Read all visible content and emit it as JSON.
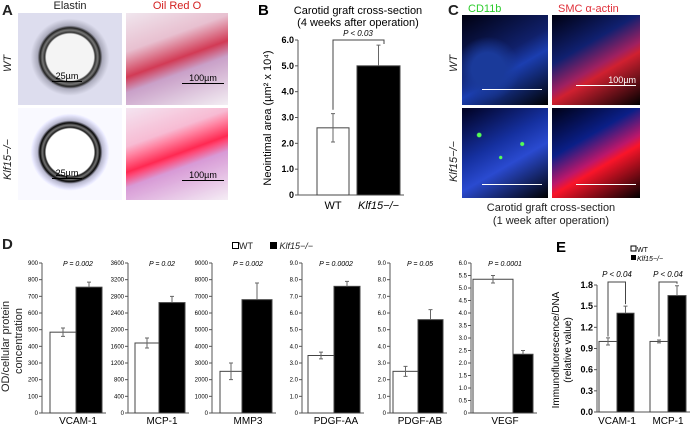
{
  "panel_a": {
    "letter": "A",
    "col1": "Elastin",
    "col2": "Oil Red O",
    "row1": "WT",
    "row2": "Klf15−/−",
    "scale_elastin": "25µm",
    "scale_oil": "100µm"
  },
  "panel_c": {
    "letter": "C",
    "col1": "CD11b",
    "col2": "SMC α-actin",
    "row1": "WT",
    "row2": "Klf15−/−",
    "scale": "100µm",
    "caption1": "Carotid graft cross-section",
    "caption2": "(1 week after operation)",
    "colors": {
      "cd11b": "#2ecc2e",
      "smc": "#e0303a"
    }
  },
  "panel_d": {
    "letter": "D",
    "legend_wt": "WT",
    "legend_ko": "Klf15−/−",
    "ylabel1": "OD/cellular protein",
    "ylabel2": "concentration"
  },
  "chart_data": [
    {
      "id": "B",
      "type": "bar",
      "letter": "B",
      "title": "Carotid graft cross-section",
      "subtitle": "(4 weeks after operation)",
      "ylabel": "Neointimal area (µm² x 10⁴)",
      "categories": [
        "WT",
        "Klf15−/−"
      ],
      "values": [
        2.6,
        5.0
      ],
      "errors": [
        0.55,
        0.8
      ],
      "ylim": [
        0,
        6
      ],
      "ticks": [
        "0",
        "1.0",
        "2.0",
        "3.0",
        "4.0",
        "5.0",
        "6.0"
      ],
      "pvalue": "P < 0.03"
    },
    {
      "id": "D1",
      "type": "bar",
      "category": "VCAM-1",
      "series": [
        {
          "name": "WT",
          "value": 485,
          "error": 25
        },
        {
          "name": "Klf15−/−",
          "value": 755,
          "error": 30
        }
      ],
      "ylim": [
        0,
        900
      ],
      "ticks": [
        "0",
        "100",
        "200",
        "300",
        "400",
        "500",
        "600",
        "700",
        "800",
        "900"
      ],
      "pvalue": "P = 0.002"
    },
    {
      "id": "D2",
      "type": "bar",
      "category": "MCP-1",
      "series": [
        {
          "name": "WT",
          "value": 1680,
          "error": 120
        },
        {
          "name": "Klf15−/−",
          "value": 2650,
          "error": 150
        }
      ],
      "ylim": [
        0,
        3600
      ],
      "ticks": [
        "0",
        "400",
        "800",
        "1200",
        "1600",
        "2000",
        "2400",
        "2800",
        "3200",
        "3600"
      ],
      "pvalue": "P = 0.02"
    },
    {
      "id": "D3",
      "type": "bar",
      "category": "MMP3",
      "series": [
        {
          "name": "WT",
          "value": 2500,
          "error": 500
        },
        {
          "name": "Klf15−/−",
          "value": 6800,
          "error": 1000
        }
      ],
      "ylim": [
        0,
        9000
      ],
      "ticks": [
        "0",
        "1000",
        "2000",
        "3000",
        "4000",
        "5000",
        "6000",
        "7000",
        "8000",
        "9000"
      ],
      "pvalue": "P = 0.002"
    },
    {
      "id": "D4",
      "type": "bar",
      "category": "PDGF-AA",
      "series": [
        {
          "name": "WT",
          "value": 3.45,
          "error": 0.2
        },
        {
          "name": "Klf15−/−",
          "value": 7.6,
          "error": 0.3
        }
      ],
      "ylim": [
        0,
        9
      ],
      "ticks": [
        "0",
        "1.0",
        "2.0",
        "3.0",
        "4.0",
        "5.0",
        "6.0",
        "7.0",
        "8.0",
        "9.0"
      ],
      "pvalue": "P = 0.0002"
    },
    {
      "id": "D5",
      "type": "bar",
      "category": "PDGF-AB",
      "series": [
        {
          "name": "WT",
          "value": 2.5,
          "error": 0.3
        },
        {
          "name": "Klf15−/−",
          "value": 5.6,
          "error": 0.6
        }
      ],
      "ylim": [
        0,
        9
      ],
      "ticks": [
        "0",
        "1.0",
        "2.0",
        "3.0",
        "4.0",
        "5.0",
        "6.0",
        "7.0",
        "8.0",
        "9.0"
      ],
      "pvalue": "P = 0.05"
    },
    {
      "id": "D6",
      "type": "bar",
      "category": "VEGF",
      "series": [
        {
          "name": "WT",
          "value": 5.35,
          "error": 0.15
        },
        {
          "name": "Klf15−/−",
          "value": 2.35,
          "error": 0.15
        }
      ],
      "ylim": [
        0,
        6
      ],
      "ticks": [
        "0",
        "0.5",
        "1.0",
        "1.5",
        "2.0",
        "2.5",
        "3.0",
        "3.5",
        "4.0",
        "4.5",
        "5.0",
        "5.5",
        "6.0"
      ],
      "pvalue": "P = 0.0001"
    },
    {
      "id": "E",
      "type": "bar",
      "letter": "E",
      "ylabel1": "Immunofluorescence/DNA",
      "ylabel2": "(relative value)",
      "legend_wt": "WT",
      "legend_ko": "Klf15−/−",
      "categories": [
        "VCAM-1",
        "MCP-1"
      ],
      "series": [
        {
          "name": "WT",
          "values": [
            1.0,
            1.0
          ],
          "errors": [
            0.05,
            0.02
          ]
        },
        {
          "name": "Klf15−/−",
          "values": [
            1.4,
            1.65
          ],
          "errors": [
            0.1,
            0.14
          ]
        }
      ],
      "ylim": [
        0,
        1.8
      ],
      "ticks": [
        "0.0",
        "0.3",
        "0.6",
        "0.9",
        "1.2",
        "1.5",
        "1.8"
      ],
      "pvalues": [
        "P < 0.04",
        "P < 0.04"
      ]
    }
  ]
}
